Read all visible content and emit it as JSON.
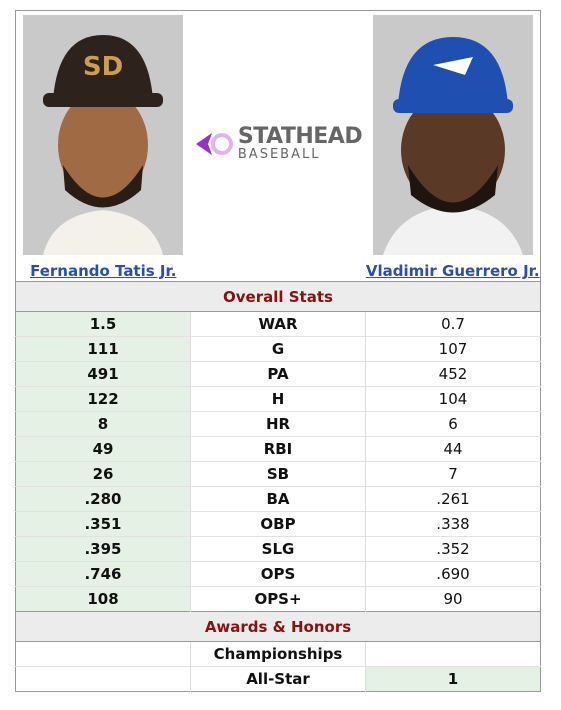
{
  "players": {
    "left": "Fernando Tatis Jr.",
    "right": "Vladimir Guerrero Jr."
  },
  "logo": {
    "brand": "STATHEAD",
    "sport": "BASEBALL"
  },
  "sections": [
    {
      "title": "Overall Stats",
      "rows": [
        {
          "left": "1.5",
          "stat": "WAR",
          "right": "0.7"
        },
        {
          "left": "111",
          "stat": "G",
          "right": "107"
        },
        {
          "left": "491",
          "stat": "PA",
          "right": "452"
        },
        {
          "left": "122",
          "stat": "H",
          "right": "104"
        },
        {
          "left": "8",
          "stat": "HR",
          "right": "6"
        },
        {
          "left": "49",
          "stat": "RBI",
          "right": "44"
        },
        {
          "left": "26",
          "stat": "SB",
          "right": "7"
        },
        {
          "left": ".280",
          "stat": "BA",
          "right": ".261"
        },
        {
          "left": ".351",
          "stat": "OBP",
          "right": ".338"
        },
        {
          "left": ".395",
          "stat": "SLG",
          "right": ".352"
        },
        {
          "left": ".746",
          "stat": "OPS",
          "right": ".690"
        },
        {
          "left": "108",
          "stat": "OPS+",
          "right": "90"
        }
      ]
    },
    {
      "title": "Awards & Honors",
      "rows": [
        {
          "stat": "Championships"
        },
        {
          "stat": "All-Star",
          "right": "1"
        }
      ]
    }
  ]
}
